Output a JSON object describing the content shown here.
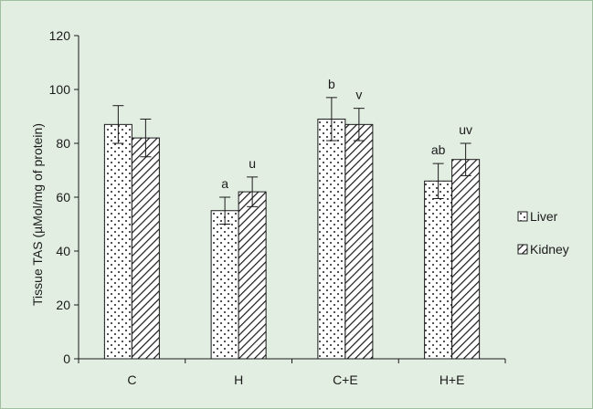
{
  "chart_data": {
    "type": "bar",
    "title": "",
    "xlabel": "",
    "ylabel": "Tissue TAS (µMol/mg of protein)",
    "ylim": [
      0,
      120
    ],
    "yticks": [
      "0",
      "20",
      "40",
      "60",
      "80",
      "100",
      "120"
    ],
    "grid": false,
    "legend_position": "right",
    "categories": [
      "C",
      "H",
      "C+E",
      "H+E"
    ],
    "series": [
      {
        "name": "Liver",
        "pattern": "dots",
        "values": [
          87,
          55,
          89,
          66
        ],
        "errors": [
          7,
          5,
          8,
          6.5
        ],
        "annotations": [
          "",
          "a",
          "b",
          "ab"
        ]
      },
      {
        "name": "Kidney",
        "pattern": "diagonal-hatch",
        "values": [
          82,
          62,
          87,
          74
        ],
        "errors": [
          7,
          5.5,
          6,
          6
        ],
        "annotations": [
          "",
          "u",
          "v",
          "uv"
        ]
      }
    ],
    "colors": {
      "background": "#e3eee3",
      "bar_fill": "#ffffff",
      "stroke": "#1a1a1a"
    }
  }
}
